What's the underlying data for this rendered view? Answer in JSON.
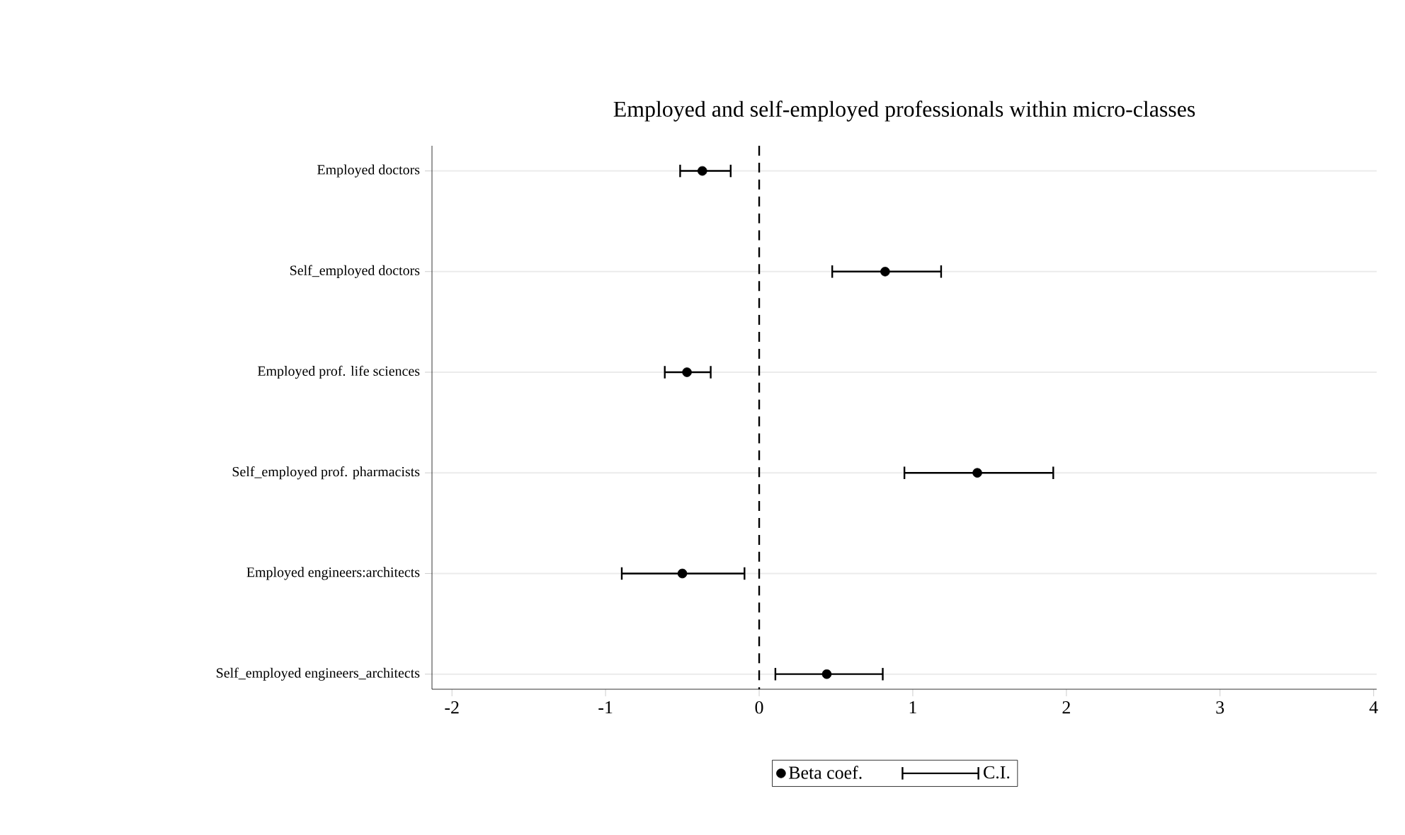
{
  "chart_data": {
    "type": "scatter",
    "orientation": "horizontal",
    "title": "Employed and self-employed professionals within micro-classes",
    "categories": [
      "Employed doctors",
      "Self_employed doctors",
      "Employed prof. life sciences",
      "Self_employed prof. pharmacists",
      "Employed engineers:architects",
      "Self_employed engineers_architects"
    ],
    "series": [
      {
        "name": "Beta coef.",
        "color": "#000000",
        "marker": "circle",
        "values": [
          -0.37,
          0.82,
          -0.47,
          1.42,
          -0.5,
          0.44
        ],
        "errors": [
          [
            -0.52,
            -0.18
          ],
          [
            0.47,
            1.19
          ],
          [
            -0.62,
            -0.31
          ],
          [
            0.94,
            1.92
          ],
          [
            -0.9,
            -0.09
          ],
          [
            0.1,
            0.81
          ]
        ]
      }
    ],
    "annotations": [
      "C.I."
    ],
    "xlim": [
      -2.13,
      4.02
    ],
    "xticks": [
      -2,
      -1,
      0,
      1,
      2,
      3,
      4
    ],
    "ref_lines": [
      {
        "axis": "x",
        "value": 0,
        "color": "#000000",
        "line_style": "dashed"
      }
    ],
    "grid": "y",
    "legend": "bottom"
  }
}
